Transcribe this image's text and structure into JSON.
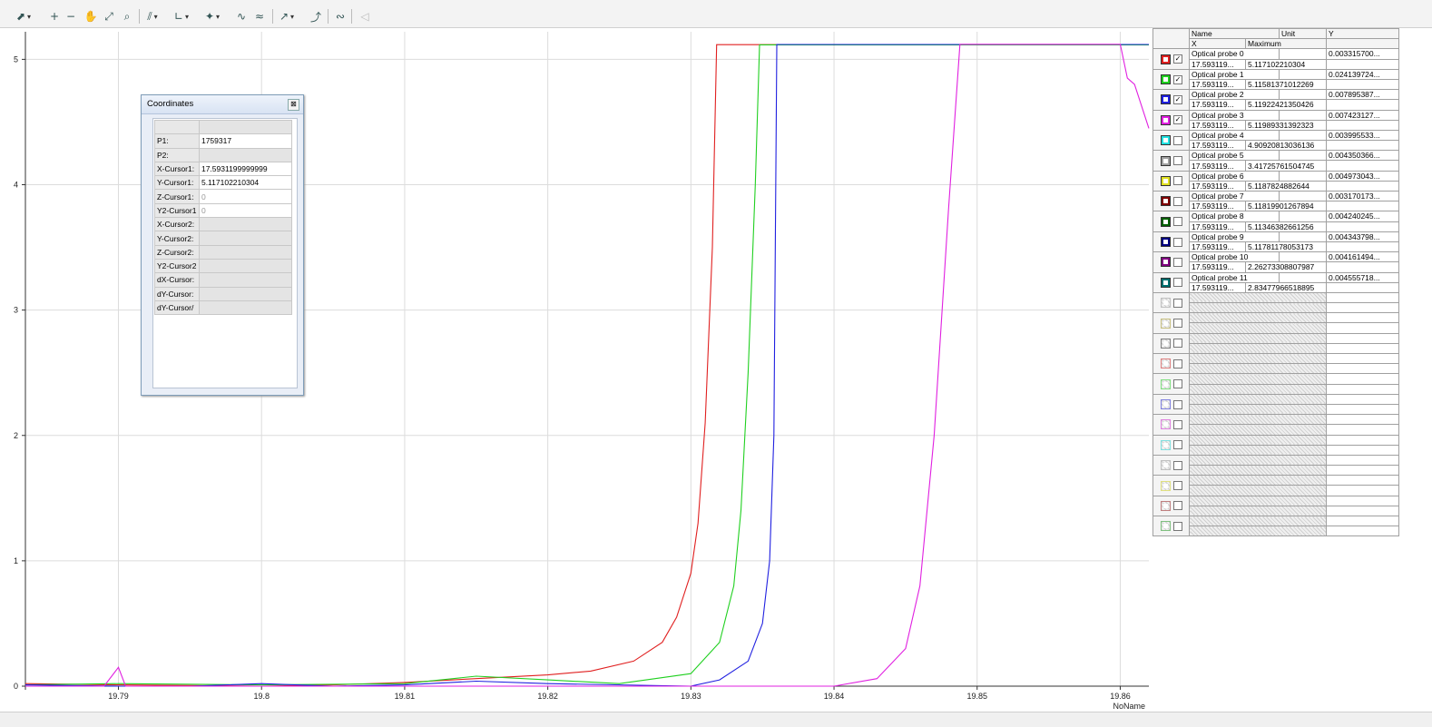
{
  "toolbar": {
    "icons": [
      "cursor-select-icon",
      "zoom-in-icon",
      "zoom-out-icon",
      "pan-hand-icon",
      "zoom-reset-icon",
      "zoom-box-icon",
      "fft-icon",
      "axes-icon",
      "marker-icon",
      "fit-icon",
      "fit-reset-icon",
      "measure-icon",
      "measure-reset-icon",
      "curve-icon",
      "mute-icon"
    ]
  },
  "coordinates_panel": {
    "title": "Coordinates",
    "close_glyph": "⊠",
    "rows": [
      {
        "label": "P1:",
        "value": "1759317"
      },
      {
        "label": "P2:",
        "value": ""
      },
      {
        "label": "X-Cursor1:",
        "value": "17.5931199999999"
      },
      {
        "label": "Y-Cursor1:",
        "value": "5.117102210304"
      },
      {
        "label": "Z-Cursor1:",
        "value": "0"
      },
      {
        "label": "Y2-Cursor1",
        "value": "0"
      },
      {
        "label": "X-Cursor2:",
        "value": ""
      },
      {
        "label": "Y-Cursor2:",
        "value": ""
      },
      {
        "label": "Z-Cursor2:",
        "value": ""
      },
      {
        "label": "Y2-Cursor2",
        "value": ""
      },
      {
        "label": "dX-Cursor:",
        "value": ""
      },
      {
        "label": "dY-Cursor:",
        "value": ""
      },
      {
        "label": "dY-Cursor/",
        "value": ""
      }
    ]
  },
  "legend": {
    "headers": {
      "name": "Name",
      "unit": "Unit",
      "y": "Y",
      "x": "X",
      "maximum": "Maximum"
    },
    "channels": [
      {
        "name": "Optical probe 0",
        "x": "17.593119...",
        "maximum": "5.117102210304",
        "y": "0.003315700...",
        "color": "#e02020",
        "checked": true
      },
      {
        "name": "Optical probe 1",
        "x": "17.593119...",
        "maximum": "5.11581371012269",
        "y": "0.024139724...",
        "color": "#20d020",
        "checked": true
      },
      {
        "name": "Optical probe 2",
        "x": "17.593119...",
        "maximum": "5.11922421350426",
        "y": "0.007895387...",
        "color": "#2020e0",
        "checked": true
      },
      {
        "name": "Optical probe 3",
        "x": "17.593119...",
        "maximum": "5.11989331392323",
        "y": "0.007423127...",
        "color": "#e020e0",
        "checked": true
      },
      {
        "name": "Optical probe 4",
        "x": "17.593119...",
        "maximum": "4.90920813036136",
        "y": "0.003995533...",
        "color": "#20e0e0",
        "checked": false
      },
      {
        "name": "Optical probe 5",
        "x": "17.593119...",
        "maximum": "3.41725761504745",
        "y": "0.004350366...",
        "color": "#a0a0a0",
        "checked": false
      },
      {
        "name": "Optical probe 6",
        "x": "17.593119...",
        "maximum": "5.1187824882644",
        "y": "0.004973043...",
        "color": "#e0e020",
        "checked": false
      },
      {
        "name": "Optical probe 7",
        "x": "17.593119...",
        "maximum": "5.11819901267894",
        "y": "0.003170173...",
        "color": "#800000",
        "checked": false
      },
      {
        "name": "Optical probe 8",
        "x": "17.593119...",
        "maximum": "5.11346382661256",
        "y": "0.004240245...",
        "color": "#006000",
        "checked": false
      },
      {
        "name": "Optical probe 9",
        "x": "17.593119...",
        "maximum": "5.11781178053173",
        "y": "0.004343798...",
        "color": "#000080",
        "checked": false
      },
      {
        "name": "Optical probe 10",
        "x": "17.593119...",
        "maximum": "2.26273308807987",
        "y": "0.004161494...",
        "color": "#800080",
        "checked": false
      },
      {
        "name": "Optical probe 11",
        "x": "17.593119...",
        "maximum": "2.83477966518895",
        "y": "0.004555718...",
        "color": "#007070",
        "checked": false
      }
    ],
    "empty_slot_colors": [
      "#c0c0c0",
      "#c8c080",
      "#808080",
      "#e08080",
      "#80e080",
      "#8080e0",
      "#e080e0",
      "#80e0e0",
      "#c0c0c0",
      "#e0e080",
      "#c08080",
      "#80c080"
    ]
  },
  "chart_data": {
    "type": "line",
    "xlabel": "NoName",
    "xlim": [
      19.7835,
      19.862
    ],
    "ylim": [
      0,
      5.22
    ],
    "x_ticks": [
      19.79,
      19.8,
      19.81,
      19.82,
      19.83,
      19.84,
      19.85,
      19.86
    ],
    "x_tick_labels": [
      "19.79",
      "19.8",
      "19.81",
      "19.82",
      "19.83",
      "19.84",
      "19.85",
      "19.86"
    ],
    "y_ticks": [
      0,
      1,
      2,
      3,
      4,
      5
    ],
    "y_tick_labels": [
      "0",
      "1",
      "2",
      "3",
      "4",
      "5"
    ],
    "grid": true,
    "series": [
      {
        "color": "#e02020",
        "points": [
          [
            19.7835,
            0.02
          ],
          [
            19.79,
            0.01
          ],
          [
            19.8,
            0.0
          ],
          [
            19.805,
            0.01
          ],
          [
            19.81,
            0.03
          ],
          [
            19.815,
            0.06
          ],
          [
            19.82,
            0.09
          ],
          [
            19.823,
            0.12
          ],
          [
            19.826,
            0.2
          ],
          [
            19.828,
            0.35
          ],
          [
            19.829,
            0.55
          ],
          [
            19.83,
            0.9
          ],
          [
            19.8305,
            1.3
          ],
          [
            19.831,
            2.1
          ],
          [
            19.8315,
            3.5
          ],
          [
            19.8318,
            5.117
          ],
          [
            19.862,
            5.117
          ]
        ]
      },
      {
        "color": "#20d020",
        "points": [
          [
            19.7835,
            0.01
          ],
          [
            19.79,
            0.02
          ],
          [
            19.8,
            0.01
          ],
          [
            19.81,
            0.02
          ],
          [
            19.815,
            0.08
          ],
          [
            19.82,
            0.05
          ],
          [
            19.825,
            0.02
          ],
          [
            19.83,
            0.1
          ],
          [
            19.832,
            0.35
          ],
          [
            19.833,
            0.8
          ],
          [
            19.8335,
            1.4
          ],
          [
            19.834,
            2.5
          ],
          [
            19.8345,
            4.0
          ],
          [
            19.8348,
            5.116
          ],
          [
            19.862,
            5.116
          ]
        ]
      },
      {
        "color": "#2020e0",
        "points": [
          [
            19.7835,
            0.01
          ],
          [
            19.79,
            0.0
          ],
          [
            19.795,
            0.0
          ],
          [
            19.8,
            0.02
          ],
          [
            19.805,
            0.0
          ],
          [
            19.81,
            0.01
          ],
          [
            19.815,
            0.04
          ],
          [
            19.82,
            0.02
          ],
          [
            19.83,
            0.0
          ],
          [
            19.832,
            0.05
          ],
          [
            19.834,
            0.2
          ],
          [
            19.835,
            0.5
          ],
          [
            19.8355,
            1.0
          ],
          [
            19.8358,
            2.0
          ],
          [
            19.836,
            5.119
          ],
          [
            19.862,
            5.119
          ]
        ]
      },
      {
        "color": "#e020e0",
        "points": [
          [
            19.7835,
            0.0
          ],
          [
            19.789,
            0.0
          ],
          [
            19.79,
            0.15
          ],
          [
            19.7905,
            0.0
          ],
          [
            19.8,
            0.0
          ],
          [
            19.82,
            0.0
          ],
          [
            19.835,
            0.0
          ],
          [
            19.84,
            0.0
          ],
          [
            19.843,
            0.06
          ],
          [
            19.845,
            0.3
          ],
          [
            19.846,
            0.8
          ],
          [
            19.847,
            2.0
          ],
          [
            19.848,
            3.8
          ],
          [
            19.8488,
            5.12
          ],
          [
            19.86,
            5.12
          ],
          [
            19.8605,
            4.85
          ],
          [
            19.861,
            4.8
          ],
          [
            19.862,
            4.45
          ]
        ]
      }
    ]
  }
}
